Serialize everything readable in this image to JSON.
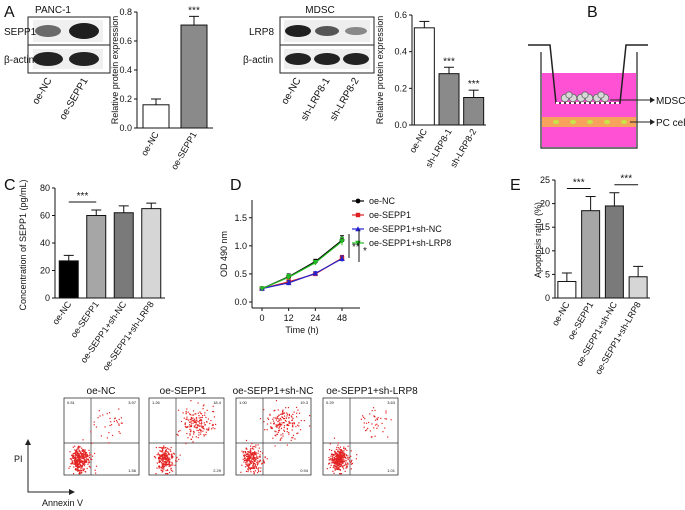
{
  "panels": {
    "A": "A",
    "B": "B",
    "C": "C",
    "D": "D",
    "E": "E"
  },
  "blots": {
    "left": {
      "title": "PANC-1",
      "rows": [
        "SEPP1",
        "β-actin"
      ],
      "lanes": [
        "oe-NC",
        "oe-SEPP1"
      ]
    },
    "right": {
      "title": "MDSC",
      "rows": [
        "LRP8",
        "β-actin"
      ],
      "lanes": [
        "oe-NC",
        "sh-LRP8-1",
        "sh-LRP8-2"
      ]
    }
  },
  "transwell": {
    "mdsc": "MDSC",
    "pc": "PC cell"
  },
  "flow": {
    "titles": [
      "oe-NC",
      "oe-SEPP1",
      "oe-SEPP1+sh-NC",
      "oe-SEPP1+sh-LRP8"
    ],
    "yaxis": "PI",
    "xaxis": "Annexin V",
    "quadrants": [
      [
        "0.51",
        "3.97",
        "1.56",
        ""
      ],
      [
        "1.26",
        "18.4",
        "2.29",
        ""
      ],
      [
        "1.00",
        "19.3",
        "0.94",
        ""
      ],
      [
        "0.29",
        "3.63",
        "1.01",
        ""
      ]
    ]
  },
  "chart_data": [
    {
      "id": "A1",
      "type": "bar",
      "categories": [
        "oe-NC",
        "oe-SEPP1"
      ],
      "values": [
        0.16,
        0.71
      ],
      "errors": [
        0.04,
        0.06
      ],
      "colors": [
        "#ffffff",
        "#8a8a8a"
      ],
      "ylabel": "Relative protein expression",
      "ylim": [
        0,
        0.8
      ],
      "ticks": [
        "0.0",
        "0.2",
        "0.4",
        "0.6",
        "0.8"
      ],
      "sig": [
        "",
        "***"
      ]
    },
    {
      "id": "A2",
      "type": "bar",
      "categories": [
        "oe-NC",
        "sh-LRP8-1",
        "sh-LRP8-2"
      ],
      "values": [
        0.53,
        0.28,
        0.15
      ],
      "errors": [
        0.035,
        0.035,
        0.04
      ],
      "colors": [
        "#ffffff",
        "#8a8a8a",
        "#8a8a8a"
      ],
      "ylabel": "Relative protein expression",
      "ylim": [
        0,
        0.6
      ],
      "ticks": [
        "0.0",
        "0.2",
        "0.4",
        "0.6"
      ],
      "sig": [
        "",
        "***",
        "***"
      ]
    },
    {
      "id": "C",
      "type": "bar",
      "categories": [
        "oe-NC",
        "oe-SEPP1",
        "oe-SEPP1+sh-NC",
        "oe-SEPP1+sh-LRP8"
      ],
      "values": [
        27,
        60,
        62,
        65
      ],
      "errors": [
        4,
        4,
        5,
        4
      ],
      "colors": [
        "#000000",
        "#a6a6a6",
        "#7a7a7a",
        "#d6d6d6"
      ],
      "ylabel": "Concentration of SEPP1 (pg/mL)",
      "ylim": [
        0,
        80
      ],
      "ticks": [
        "0",
        "20",
        "40",
        "60",
        "80"
      ],
      "sig_bracket": {
        "from": 0,
        "to": 1,
        "label": "***"
      }
    },
    {
      "id": "D",
      "type": "line",
      "x": [
        0,
        12,
        24,
        48
      ],
      "xticks": [
        "0",
        "12",
        "24",
        "48"
      ],
      "xlabel": "Time (h)",
      "ylabel": "OD 490 nm",
      "ylim": [
        0.0,
        1.5
      ],
      "ticks": [
        "0.0",
        "0.5",
        "1.0",
        "1.5"
      ],
      "series": [
        {
          "name": "oe-NC",
          "color": "#000000",
          "marker": "circle",
          "values": [
            0.24,
            0.45,
            0.72,
            1.1
          ],
          "errors": [
            0.02,
            0.05,
            0.04,
            0.08
          ]
        },
        {
          "name": "oe-SEPP1",
          "color": "#e02020",
          "marker": "square",
          "values": [
            0.24,
            0.36,
            0.5,
            0.78
          ],
          "errors": [
            0.02,
            0.05,
            0.03,
            0.05
          ]
        },
        {
          "name": "oe-SEPP1+sh-NC",
          "color": "#2222cc",
          "marker": "triangle",
          "values": [
            0.24,
            0.34,
            0.51,
            0.77
          ],
          "errors": [
            0.02,
            0.04,
            0.03,
            0.05
          ]
        },
        {
          "name": "oe-SEPP1+sh-LRP8",
          "color": "#22bb22",
          "marker": "triangle-down",
          "values": [
            0.24,
            0.44,
            0.7,
            1.08
          ],
          "errors": [
            0.02,
            0.05,
            0.04,
            0.07
          ]
        }
      ],
      "annotations": [
        "**",
        "*"
      ]
    },
    {
      "id": "E",
      "type": "bar",
      "categories": [
        "oe-NC",
        "oe-SEPP1",
        "oe-SEPP1+sh-NC",
        "oe-SEPP1+sh-LRP8"
      ],
      "values": [
        3.5,
        18.5,
        19.5,
        4.5
      ],
      "errors": [
        1.8,
        3.0,
        2.8,
        2.2
      ],
      "colors": [
        "#ffffff",
        "#a6a6a6",
        "#7a7a7a",
        "#d6d6d6"
      ],
      "ylabel": "Apoptosis ratio (%)",
      "ylim": [
        0,
        25
      ],
      "ticks": [
        "0",
        "5",
        "10",
        "15",
        "20",
        "25"
      ],
      "sig_brackets": [
        {
          "from": 0,
          "to": 1,
          "label": "***"
        },
        {
          "from": 2,
          "to": 3,
          "label": "***"
        }
      ]
    }
  ]
}
